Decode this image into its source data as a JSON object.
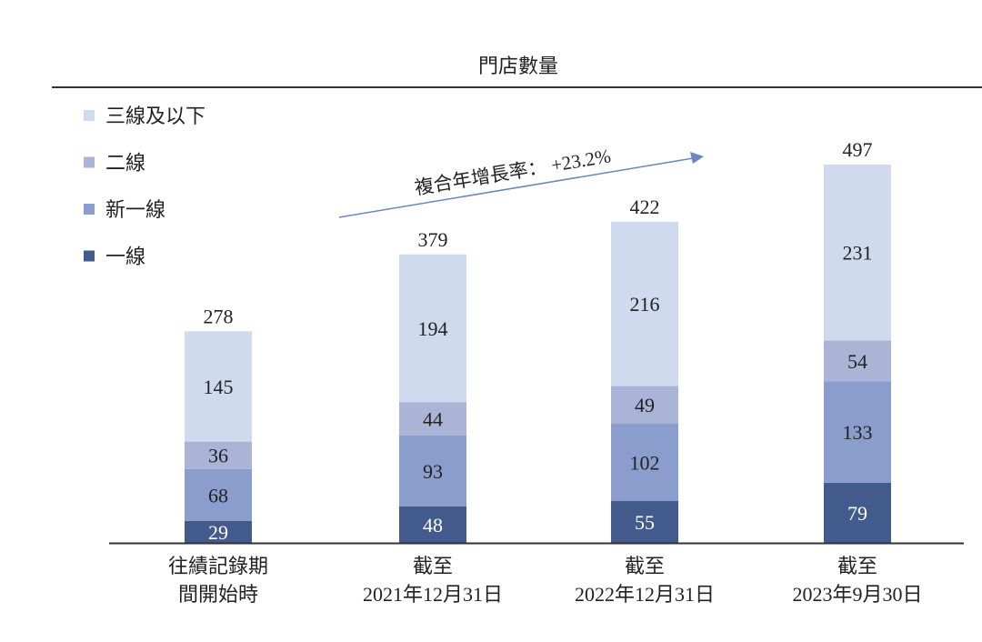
{
  "chart_data": {
    "type": "bar",
    "stacked": true,
    "title": "門店數量",
    "categories": [
      [
        "往績記錄期",
        "間開始時"
      ],
      [
        "截至",
        "2021年12月31日"
      ],
      [
        "截至",
        "2022年12月31日"
      ],
      [
        "截至",
        "2023年9月30日"
      ]
    ],
    "series": [
      {
        "name": "一線",
        "color": "#425a8c",
        "label_color": "#ffffff",
        "values": [
          29,
          48,
          55,
          79
        ]
      },
      {
        "name": "新一線",
        "color": "#8a9dcc",
        "label_color": "#222222",
        "values": [
          68,
          93,
          102,
          133
        ]
      },
      {
        "name": "二線",
        "color": "#aab4d6",
        "label_color": "#222222",
        "values": [
          36,
          44,
          49,
          54
        ]
      },
      {
        "name": "三線及以下",
        "color": "#cfdaee",
        "label_color": "#222222",
        "values": [
          145,
          194,
          216,
          231
        ]
      }
    ],
    "totals": [
      278,
      379,
      422,
      497
    ],
    "legend_order": [
      "三線及以下",
      "二線",
      "新一線",
      "一線"
    ],
    "legend_position": "top-left",
    "annotation": "複合年增長率： +23.2%",
    "ylim": [
      0,
      497
    ],
    "grid": false
  }
}
